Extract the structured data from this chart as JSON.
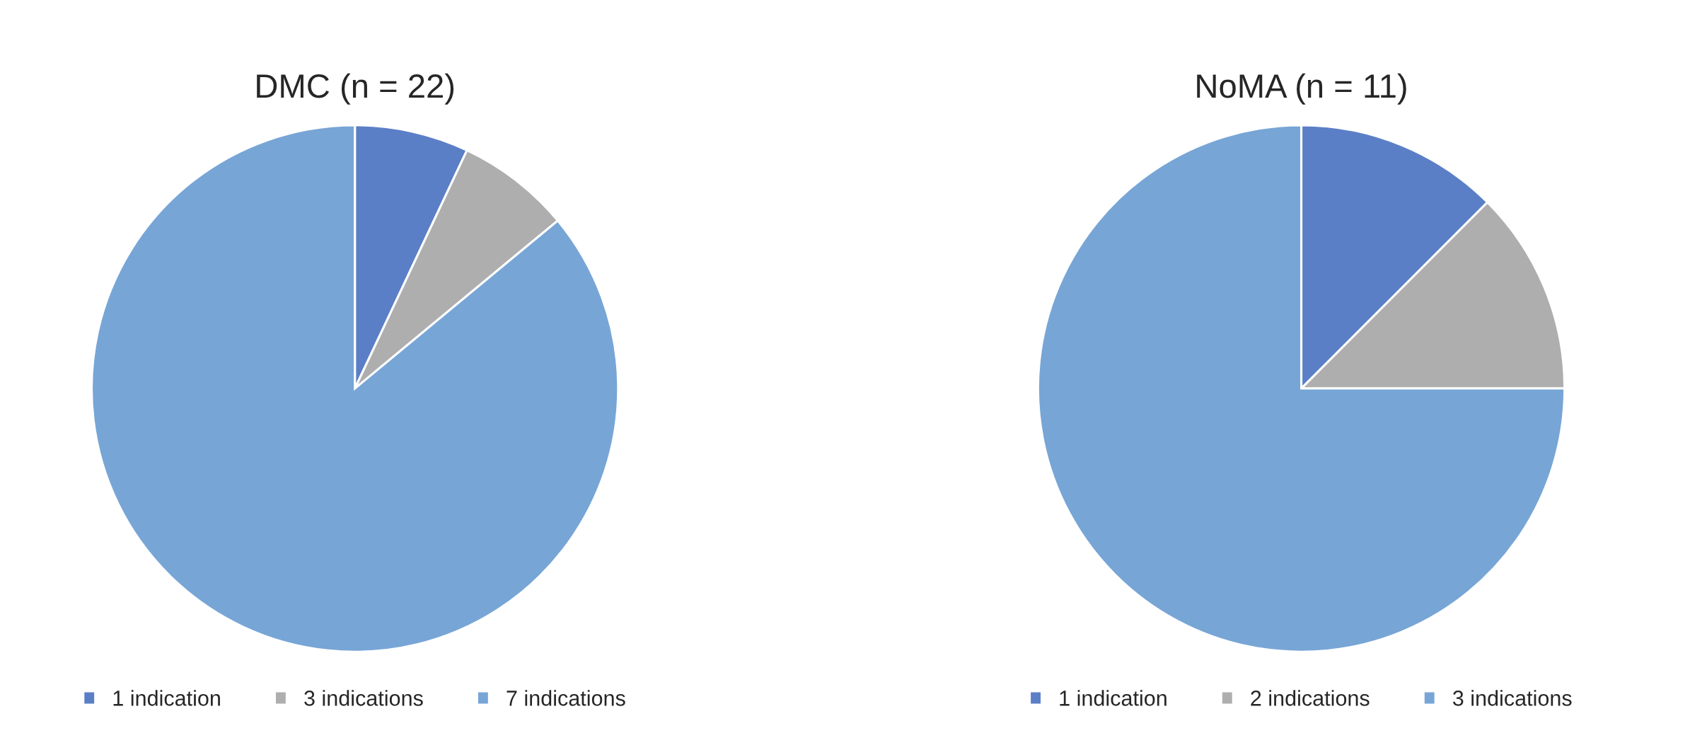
{
  "chart_data": [
    {
      "type": "pie",
      "title": "DMC (n = 22)",
      "categories": [
        "1 indication",
        "3 indications",
        "7 indications"
      ],
      "values": [
        7,
        7,
        86
      ],
      "colors": [
        "#5b7fc7",
        "#aeaeae",
        "#77a5d6"
      ],
      "legend": "bottom"
    },
    {
      "type": "pie",
      "title": "NoMA (n = 11)",
      "categories": [
        "1 indication",
        "2 indications",
        "3 indications"
      ],
      "values": [
        12.5,
        12.5,
        75
      ],
      "colors": [
        "#5b7fc7",
        "#aeaeae",
        "#77a5d6"
      ],
      "legend": "bottom"
    }
  ]
}
